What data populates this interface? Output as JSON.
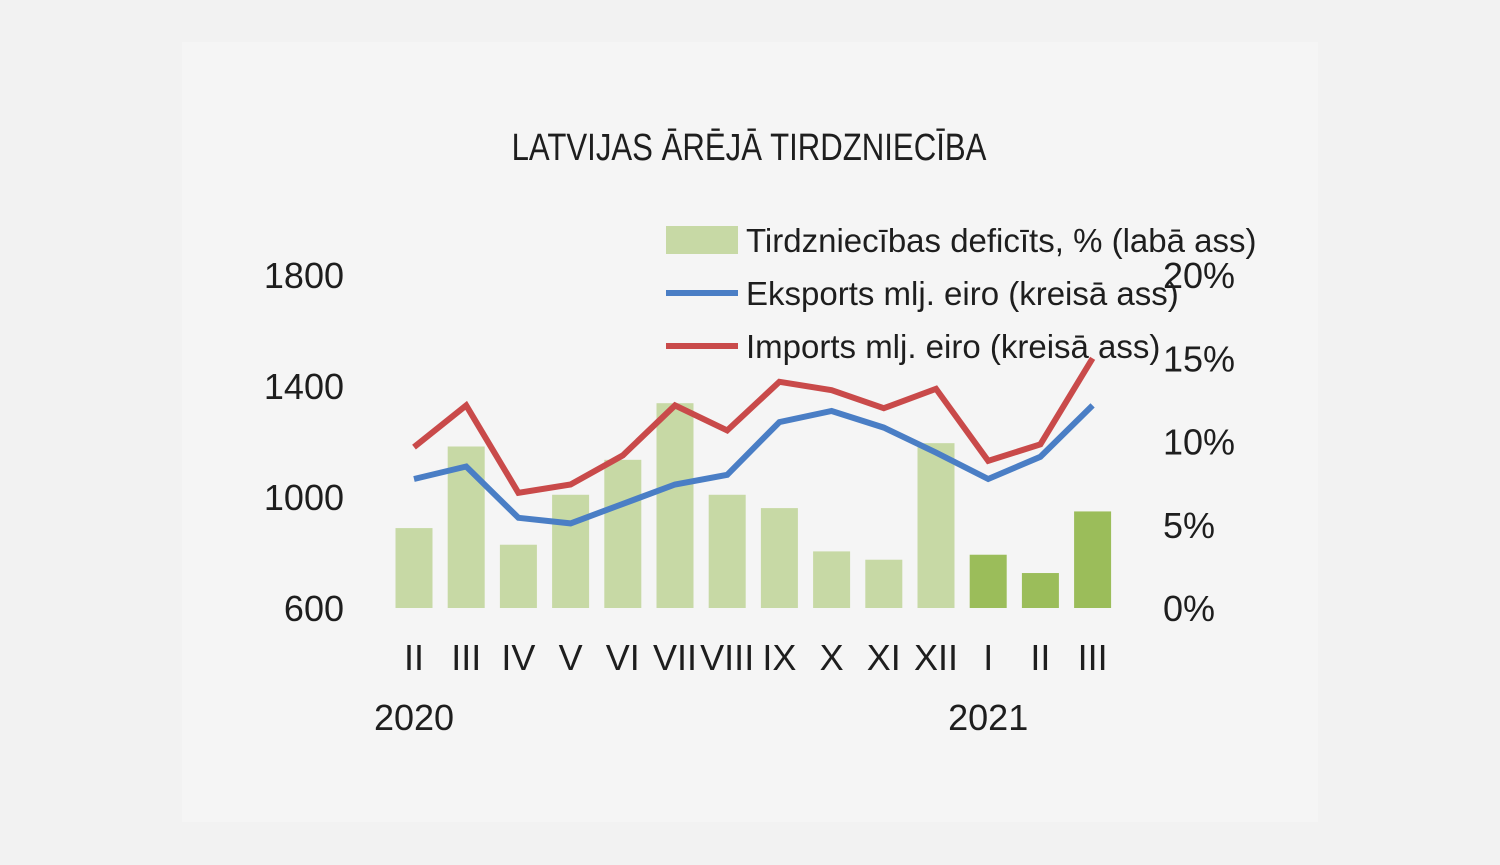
{
  "chart_data": {
    "type": "bar+line",
    "title": "LATVIJAS ĀRĒJĀ TIRDZNIECĪBA",
    "categories": [
      "II",
      "III",
      "IV",
      "V",
      "VI",
      "VII",
      "VIII",
      "IX",
      "X",
      "XI",
      "XII",
      "I",
      "II",
      "III"
    ],
    "years": [
      {
        "label": "2020",
        "category_index": 0
      },
      {
        "label": "2021",
        "category_index": 11
      }
    ],
    "left_axis": {
      "ylim": [
        600,
        1800
      ],
      "ticks": [
        "600",
        "1000",
        "1400",
        "1800"
      ]
    },
    "right_axis": {
      "ylim": [
        0,
        20
      ],
      "ticks": [
        "0%",
        "5%",
        "10%",
        "15%",
        "20%"
      ]
    },
    "series": [
      {
        "name": "Tirdzniecības deficīts, % (labā ass)",
        "kind": "bar",
        "axis": "right",
        "values": [
          4.8,
          9.7,
          3.8,
          6.8,
          8.9,
          12.3,
          6.8,
          6.0,
          3.4,
          2.9,
          9.9,
          3.2,
          2.1,
          5.8
        ],
        "color": "#c7d9a5",
        "highlight_color": "#9bbd5a",
        "highlight_from_index": 11
      },
      {
        "name": "Eksports mlj. eiro (kreisā ass)",
        "kind": "line",
        "axis": "left",
        "values": [
          1065,
          1110,
          925,
          905,
          975,
          1045,
          1080,
          1270,
          1310,
          1250,
          1160,
          1065,
          1145,
          1330
        ],
        "color": "#4a7ec5"
      },
      {
        "name": "Imports mlj. eiro (kreisā ass)",
        "kind": "line",
        "axis": "left",
        "values": [
          1180,
          1330,
          1015,
          1045,
          1150,
          1330,
          1240,
          1415,
          1385,
          1320,
          1390,
          1130,
          1190,
          1500
        ],
        "color": "#c94a4a"
      }
    ]
  }
}
